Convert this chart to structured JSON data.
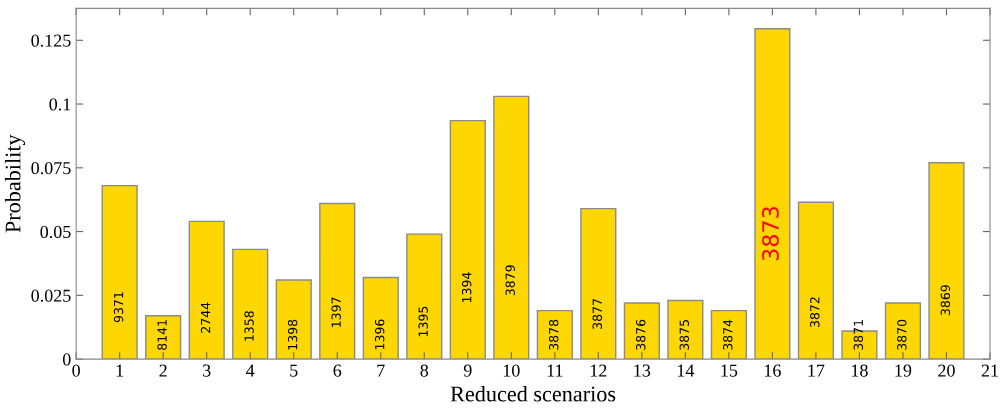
{
  "chart_data": {
    "type": "bar",
    "xlabel": "Reduced scenarios",
    "ylabel": "Probability",
    "x": [
      1,
      2,
      3,
      4,
      5,
      6,
      7,
      8,
      9,
      10,
      11,
      12,
      13,
      14,
      15,
      16,
      17,
      18,
      19,
      20
    ],
    "values": [
      0.068,
      0.017,
      0.054,
      0.043,
      0.031,
      0.061,
      0.032,
      0.049,
      0.0935,
      0.103,
      0.019,
      0.059,
      0.022,
      0.023,
      0.019,
      0.1295,
      0.0615,
      0.011,
      0.022,
      0.077
    ],
    "color": "#ffd700",
    "xlim": [
      0,
      21
    ],
    "xticks": [
      0,
      1,
      2,
      3,
      4,
      5,
      6,
      7,
      8,
      9,
      10,
      11,
      12,
      13,
      14,
      15,
      16,
      17,
      18,
      19,
      20,
      21
    ],
    "ylim": [
      0,
      0.1375
    ],
    "yticks": [
      0,
      0.025,
      0.05,
      0.075,
      0.1,
      0.125
    ],
    "grid": false,
    "annotations": [
      "9371",
      "8141",
      "2744",
      "1358",
      "1398",
      "1397",
      "1396",
      "1395",
      "1394",
      "3879",
      "3878",
      "3877",
      "3876",
      "3875",
      "3874",
      "3873",
      "3872",
      "3871",
      "3870",
      "3869"
    ]
  }
}
